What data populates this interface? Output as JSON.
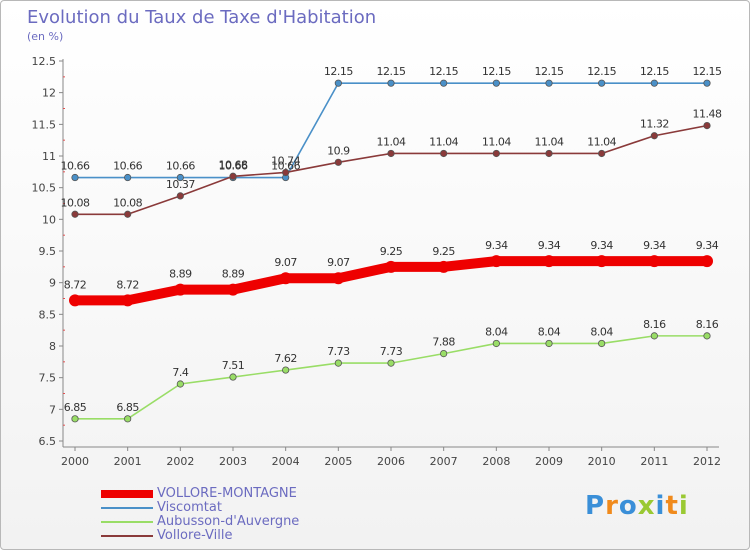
{
  "title": "Evolution du Taux de Taxe d'Habitation",
  "subtitle": "(en %)",
  "logo": {
    "text": "Proxiti",
    "colors": [
      "#3a8fd8",
      "#f08a1c",
      "#3a8fd8",
      "#9ac933",
      "#3a8fd8",
      "#f08a1c",
      "#9ac933"
    ]
  },
  "chart_data": {
    "type": "line",
    "x": [
      "2000",
      "2001",
      "2002",
      "2003",
      "2004",
      "2005",
      "2006",
      "2007",
      "2008",
      "2009",
      "2010",
      "2011",
      "2012"
    ],
    "ylim": [
      6.5,
      12.5
    ],
    "yticks": [
      "6.5",
      "7",
      "7.5",
      "8",
      "8.5",
      "9",
      "9.5",
      "10",
      "10.5",
      "11",
      "11.5",
      "12",
      "12.5"
    ],
    "grid": false,
    "legend_position": "bottom-left",
    "series": [
      {
        "name": "VOLLORE-MONTAGNE",
        "color": "#ee0000",
        "emphasis": true,
        "values": [
          8.72,
          8.72,
          8.89,
          8.89,
          9.07,
          9.07,
          9.25,
          9.25,
          9.34,
          9.34,
          9.34,
          9.34,
          9.34
        ],
        "labels": [
          "8.72",
          "8.72",
          "8.89",
          "8.89",
          "9.07",
          "9.07",
          "9.25",
          "9.25",
          "9.34",
          "9.34",
          "9.34",
          "9.34",
          "9.34"
        ]
      },
      {
        "name": "Viscomtat",
        "color": "#4a90c8",
        "emphasis": false,
        "values": [
          10.66,
          10.66,
          10.66,
          10.66,
          10.66,
          12.15,
          12.15,
          12.15,
          12.15,
          12.15,
          12.15,
          12.15,
          12.15
        ],
        "labels": [
          "10.66",
          "10.66",
          "10.66",
          "10.66",
          "10.66",
          "12.15",
          "12.15",
          "12.15",
          "12.15",
          "12.15",
          "12.15",
          "12.15",
          "12.15"
        ]
      },
      {
        "name": "Aubusson-d'Auvergne",
        "color": "#99dd66",
        "emphasis": false,
        "values": [
          6.85,
          6.85,
          7.4,
          7.51,
          7.62,
          7.73,
          7.73,
          7.88,
          8.04,
          8.04,
          8.04,
          8.16,
          8.16
        ],
        "labels": [
          "6.85",
          "6.85",
          "7.4",
          "7.51",
          "7.62",
          "7.73",
          "7.73",
          "7.88",
          "8.04",
          "8.04",
          "8.04",
          "8.16",
          "8.16"
        ]
      },
      {
        "name": "Vollore-Ville",
        "color": "#8a3a3a",
        "emphasis": false,
        "values": [
          10.08,
          10.08,
          10.37,
          10.68,
          10.74,
          10.9,
          11.04,
          11.04,
          11.04,
          11.04,
          11.04,
          11.32,
          11.48
        ],
        "labels": [
          "10.08",
          "10.08",
          "10.37",
          "10.68",
          "10.74",
          "10.9",
          "11.04",
          "11.04",
          "11.04",
          "11.04",
          "11.04",
          "11.32",
          "11.48"
        ]
      }
    ]
  }
}
